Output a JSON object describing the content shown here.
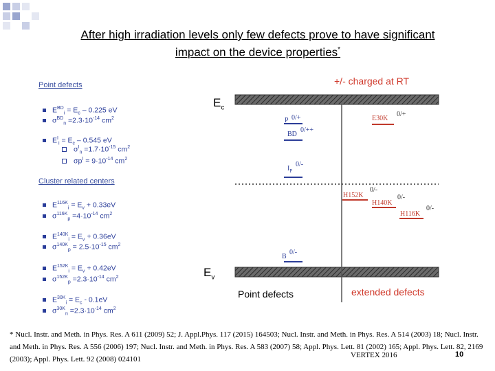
{
  "title": {
    "line1": "After high irradiation levels only few defects prove to have significant",
    "line2": "impact on the device properties",
    "mark": "*"
  },
  "left": {
    "point_heading": "Point defects",
    "cluster_heading": "Cluster related centers",
    "point_items": [
      {
        "a": "E",
        "a_sub": "i",
        "a_sup": "BD",
        "b": " = E",
        "b_sub": "c",
        "c": " – 0.225 eV"
      },
      {
        "a": "σ",
        "a_sub": "n",
        "a_sup": "BD",
        "b": " =2.3·10",
        "b_sup": "-14",
        "c": " cm",
        "c_sup": "2"
      },
      {
        "a": "E",
        "a_sub": "i",
        "a_sup": "I",
        "b": " = E",
        "b_sub": "c",
        "c": " – 0.545 eV"
      }
    ],
    "point_subitems": [
      {
        "a": "σ",
        "a_sub": "n",
        "a_sup": "I",
        "b": " =1.7·10",
        "b_sup": "-15",
        "c": " cm",
        "c_sup": "2"
      },
      {
        "a": "σp",
        "a_sup": "I",
        "b": " = 9·10",
        "b_sup": "-14",
        "c": " cm",
        "c_sup": "2"
      }
    ],
    "cluster_items": [
      {
        "a": "E",
        "a_sub": "i",
        "a_sup": "116K",
        "b": " = E",
        "b_sub": "v",
        "c": " + 0.33eV"
      },
      {
        "a": "σ",
        "a_sub": "p",
        "a_sup": "116K",
        "b": " =4·10",
        "b_sup": "-14",
        "c": " cm",
        "c_sup": "2"
      },
      {
        "a": "E",
        "a_sub": "i",
        "a_sup": "140K",
        "b": " = E",
        "b_sub": "v",
        "c": " + 0.36eV"
      },
      {
        "a": "σ",
        "a_sub": "p",
        "a_sup": "140K",
        "b": " = 2.5·10",
        "b_sup": "-15",
        "c": " cm",
        "c_sup": "2"
      },
      {
        "a": "E",
        "a_sub": "i",
        "a_sup": "152K",
        "b": " = E",
        "b_sub": "v",
        "c": " + 0.42eV"
      },
      {
        "a": "σ",
        "a_sub": "p",
        "a_sup": "152K",
        "b": " =2.3·10",
        "b_sup": "-14",
        "c": " cm",
        "c_sup": "2"
      },
      {
        "a": "E",
        "a_sub": "i",
        "a_sup": "30K",
        "b": " = E",
        "b_sub": "c",
        "c": " - 0.1eV"
      },
      {
        "a": "σ",
        "a_sub": "n",
        "a_sup": "30K",
        "b": " =2.3·10",
        "b_sup": "-14",
        "c": " cm",
        "c_sup": "2"
      }
    ]
  },
  "diagram": {
    "charged_label": "+/- charged at RT",
    "ec": {
      "main": "E",
      "sub": "c"
    },
    "ev": {
      "main": "E",
      "sub": "v"
    },
    "point_defects": "Point defects",
    "extended_defects": "extended defects",
    "levels": {
      "p": {
        "name": "P",
        "charge": "0/+"
      },
      "bd": {
        "name": "BD",
        "charge": "0/++"
      },
      "ip": {
        "name": "I",
        "name_sub": "P",
        "charge": "0/-"
      },
      "b": {
        "name": "B",
        "charge": "0/-"
      },
      "e30k": {
        "name": "E30K",
        "charge": "0/+"
      },
      "h152k": {
        "name": "H152K",
        "charge": "0/-"
      },
      "h140k": {
        "name": "H140K",
        "charge": "0/-"
      },
      "h116k": {
        "name": "H116K",
        "charge": "0/-"
      }
    },
    "colors": {
      "band": "#505050",
      "blue": "#2b3d98",
      "red": "#c0392b",
      "accent_red": "#d0392b"
    }
  },
  "footer": {
    "refs": "* Nucl. Instr. and Meth. in Phys. Res. A 611 (2009) 52;  J. Appl.Phys. 117 (2015) 164503; Nucl. Instr. and Meth. in Phys. Res. A 514 (2003) 18; Nucl. Instr. and Meth. in Phys. Res. A 556 (2006) 197;  Nucl. Instr. and Meth. in Phys. Res. A 583 (2007) 58; Appl. Phys. Lett. 81 (2002) 165; Appl. Phys. Lett. 82, 2169 (2003); Appl. Phys. Lett. 92 (2008) 024101",
    "event": "VERTEX 2016",
    "page": "10"
  }
}
